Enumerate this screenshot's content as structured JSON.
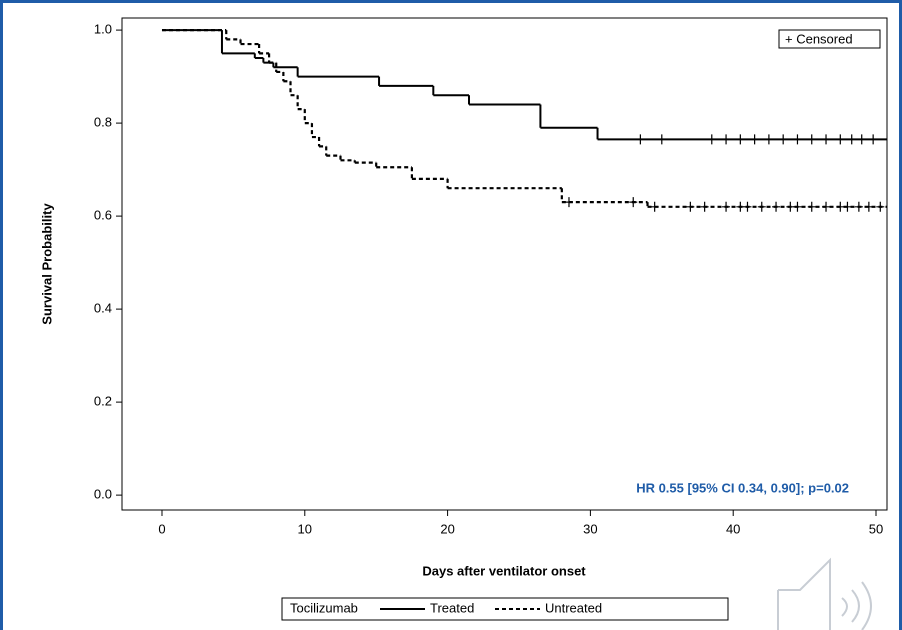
{
  "chart_data": {
    "type": "kaplan-meier",
    "ylabel": "Survival Probability",
    "xlabel": "Days after ventilator onset",
    "annotation": "HR 0.55 [95% CI 0.34, 0.90]; p=0.02",
    "censored_label": "+ Censored",
    "legend_title": "Tocilizumab",
    "xlim": [
      -2.8,
      50.77
    ],
    "ylim": [
      -0.032,
      1.026
    ],
    "xticks": [
      0,
      10,
      20,
      30,
      40,
      50
    ],
    "yticks": [
      {
        "value": 0,
        "label": "0.0"
      },
      0.2,
      0.4,
      0.6,
      0.8,
      {
        "value": 1,
        "label": "1.0"
      }
    ],
    "series": [
      {
        "name": "Treated",
        "color": "#000000",
        "dash": false,
        "x": [
          0,
          4.2,
          6.5,
          7.1,
          7.8,
          9.5,
          15.2,
          19,
          21.5,
          26.5,
          30.5
        ],
        "values": [
          1.0,
          0.95,
          0.94,
          0.93,
          0.92,
          0.9,
          0.88,
          0.86,
          0.84,
          0.79,
          0.765
        ],
        "censored_x": [
          33.5,
          35,
          38.5,
          39.5,
          40.5,
          41.5,
          42.5,
          43.5,
          44.5,
          45.5,
          46.5,
          47.5,
          48.3,
          49,
          49.8
        ],
        "censored_values": [
          0.765,
          0.765,
          0.765,
          0.765,
          0.765,
          0.765,
          0.765,
          0.765,
          0.765,
          0.765,
          0.765,
          0.765,
          0.765,
          0.765,
          0.765
        ]
      },
      {
        "name": "Untreated",
        "color": "#000000",
        "dash": true,
        "x": [
          0,
          4.5,
          5.5,
          6.8,
          7.5,
          8,
          8.5,
          9,
          9.5,
          10,
          10.5,
          11,
          11.5,
          12.5,
          13.5,
          15,
          17.5,
          20,
          28,
          34
        ],
        "values": [
          1.0,
          0.98,
          0.97,
          0.95,
          0.93,
          0.91,
          0.89,
          0.86,
          0.83,
          0.8,
          0.77,
          0.75,
          0.73,
          0.72,
          0.715,
          0.705,
          0.68,
          0.66,
          0.63,
          0.62
        ],
        "censored_x": [
          28.5,
          33,
          34.5,
          37,
          38,
          39.5,
          40.5,
          41,
          42,
          43,
          44,
          44.5,
          45.5,
          46.5,
          47.5,
          48,
          48.8,
          49.5,
          50.3
        ],
        "censored_values": [
          0.63,
          0.63,
          0.62,
          0.62,
          0.62,
          0.62,
          0.62,
          0.62,
          0.62,
          0.62,
          0.62,
          0.62,
          0.62,
          0.62,
          0.62,
          0.62,
          0.62,
          0.62,
          0.62
        ]
      }
    ]
  }
}
